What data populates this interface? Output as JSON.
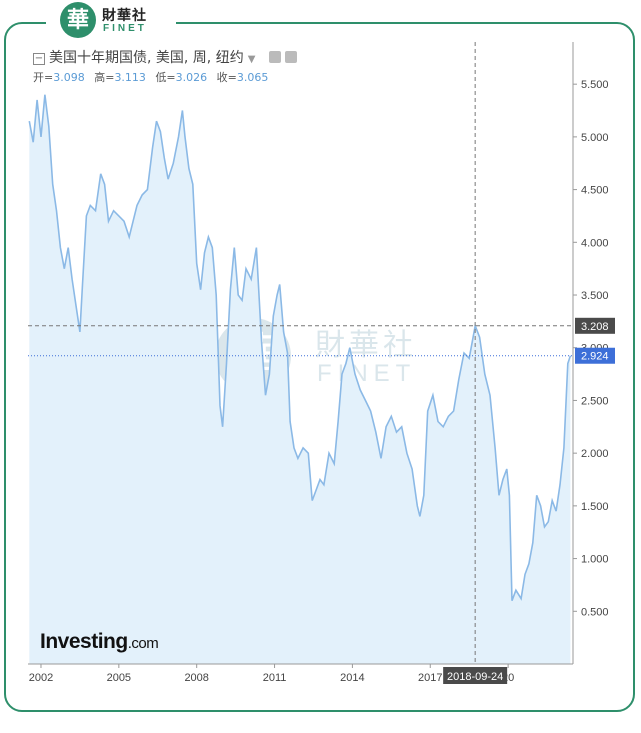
{
  "brand": {
    "logo_char": "華",
    "name_cn": "財華社",
    "name_en": "FINET"
  },
  "header": {
    "collapse_glyph": "−",
    "title": "美国十年期国债, 美国, 周, 纽约"
  },
  "ohlc": {
    "open_label": "开=",
    "open": "3.098",
    "high_label": "高=",
    "high": "3.113",
    "low_label": "低=",
    "low": "3.026",
    "close_label": "收=",
    "close": "3.065"
  },
  "footer": {
    "brand_main": "Investing",
    "brand_suffix": ".com"
  },
  "colors": {
    "line": "#8bb9e6",
    "fill": "#e3f1fb",
    "current_label_bg": "#3d6fd8",
    "crosshair_label_bg": "#4a4a4a",
    "frame": "#2e8f6b"
  },
  "chart_data": {
    "type": "area",
    "title": "美国十年期国债, 美国, 周, 纽约",
    "xlabel": "",
    "ylabel": "",
    "x_ticks": [
      "2002",
      "2005",
      "2008",
      "2011",
      "2014",
      "2017",
      "20"
    ],
    "y_ticks": [
      "0.500",
      "1.000",
      "1.500",
      "2.000",
      "2.500",
      "3.000",
      "3.500",
      "4.000",
      "4.500",
      "5.000",
      "5.500"
    ],
    "ylim": [
      0,
      5.9
    ],
    "xlim": [
      2001.5,
      2022.5
    ],
    "crosshair": {
      "date_label": "2018-09-24",
      "value_label": "3.208",
      "x": 2018.73,
      "y": 3.208
    },
    "current": {
      "value_label": "2.924",
      "y": 2.924
    },
    "grid": false,
    "series": [
      {
        "x": [
          2001.55,
          2001.7,
          2001.85,
          2002.0,
          2002.15,
          2002.3,
          2002.45,
          2002.6,
          2002.75,
          2002.9,
          2003.05,
          2003.2,
          2003.35,
          2003.5,
          2003.6,
          2003.75,
          2003.9,
          2004.1,
          2004.3,
          2004.45,
          2004.6,
          2004.8,
          2005.0,
          2005.2,
          2005.4,
          2005.55,
          2005.7,
          2005.9,
          2006.1,
          2006.3,
          2006.45,
          2006.6,
          2006.75,
          2006.9,
          2007.1,
          2007.3,
          2007.45,
          2007.55,
          2007.7,
          2007.85,
          2008.0,
          2008.15,
          2008.3,
          2008.45,
          2008.6,
          2008.75,
          2008.9,
          2009.0,
          2009.15,
          2009.3,
          2009.45,
          2009.6,
          2009.75,
          2009.9,
          2010.1,
          2010.3,
          2010.5,
          2010.65,
          2010.8,
          2010.95,
          2011.1,
          2011.2,
          2011.35,
          2011.5,
          2011.6,
          2011.75,
          2011.9,
          2012.1,
          2012.3,
          2012.45,
          2012.6,
          2012.75,
          2012.9,
          2013.1,
          2013.3,
          2013.45,
          2013.6,
          2013.75,
          2013.9,
          2014.1,
          2014.3,
          2014.5,
          2014.7,
          2014.9,
          2015.1,
          2015.3,
          2015.5,
          2015.7,
          2015.9,
          2016.1,
          2016.3,
          2016.5,
          2016.6,
          2016.75,
          2016.9,
          2017.1,
          2017.3,
          2017.5,
          2017.7,
          2017.9,
          2018.1,
          2018.3,
          2018.5,
          2018.73,
          2018.9,
          2019.1,
          2019.3,
          2019.5,
          2019.65,
          2019.8,
          2019.95,
          2020.05,
          2020.15,
          2020.3,
          2020.5,
          2020.65,
          2020.8,
          2020.95,
          2021.1,
          2021.25,
          2021.4,
          2021.55,
          2021.7,
          2021.85,
          2022.0,
          2022.15,
          2022.3,
          2022.4
        ],
        "values": [
          5.15,
          4.95,
          5.35,
          5.0,
          5.4,
          5.1,
          4.55,
          4.3,
          3.95,
          3.75,
          3.95,
          3.65,
          3.4,
          3.15,
          3.6,
          4.25,
          4.35,
          4.3,
          4.65,
          4.55,
          4.2,
          4.3,
          4.25,
          4.2,
          4.05,
          4.2,
          4.35,
          4.45,
          4.5,
          4.9,
          5.15,
          5.05,
          4.8,
          4.6,
          4.75,
          5.0,
          5.25,
          5.0,
          4.7,
          4.55,
          3.8,
          3.55,
          3.9,
          4.05,
          3.95,
          3.5,
          2.45,
          2.25,
          2.85,
          3.55,
          3.95,
          3.5,
          3.45,
          3.75,
          3.65,
          3.95,
          3.05,
          2.55,
          2.75,
          3.3,
          3.5,
          3.6,
          3.15,
          2.95,
          2.3,
          2.05,
          1.95,
          2.05,
          2.0,
          1.55,
          1.65,
          1.75,
          1.7,
          2.0,
          1.9,
          2.3,
          2.75,
          2.85,
          3.0,
          2.75,
          2.6,
          2.5,
          2.4,
          2.2,
          1.95,
          2.25,
          2.35,
          2.2,
          2.25,
          2.0,
          1.85,
          1.5,
          1.4,
          1.6,
          2.4,
          2.55,
          2.3,
          2.25,
          2.35,
          2.4,
          2.7,
          2.95,
          2.9,
          3.208,
          3.1,
          2.75,
          2.55,
          2.05,
          1.6,
          1.75,
          1.85,
          1.6,
          0.6,
          0.7,
          0.62,
          0.85,
          0.95,
          1.15,
          1.6,
          1.5,
          1.3,
          1.35,
          1.55,
          1.45,
          1.7,
          2.05,
          2.85,
          2.924
        ]
      }
    ]
  }
}
